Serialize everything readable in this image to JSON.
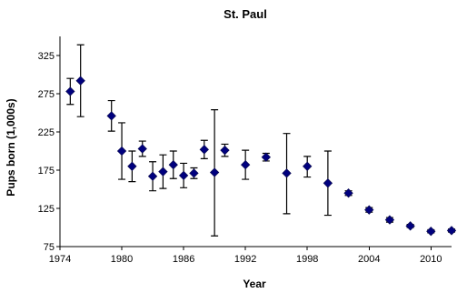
{
  "chart_data": {
    "type": "scatter",
    "title": "St. Paul",
    "xlabel": "Year",
    "ylabel": "Pups born (1,000s)",
    "xlim": [
      1974,
      2012
    ],
    "ylim": [
      75,
      350
    ],
    "xticks": [
      1974,
      1980,
      1986,
      1992,
      1998,
      2004,
      2010
    ],
    "yticks": [
      75,
      125,
      175,
      225,
      275,
      325
    ],
    "grid": false,
    "marker_color": "#00007f",
    "series": [
      {
        "points": [
          {
            "x": 1975.0,
            "y": 278,
            "lo": 261,
            "hi": 295
          },
          {
            "x": 1976.0,
            "y": 292,
            "lo": 245,
            "hi": 339
          },
          {
            "x": 1979.0,
            "y": 246,
            "lo": 226,
            "hi": 266
          },
          {
            "x": 1980.0,
            "y": 200,
            "lo": 163,
            "hi": 237
          },
          {
            "x": 1981.0,
            "y": 180,
            "lo": 160,
            "hi": 200
          },
          {
            "x": 1982.0,
            "y": 203,
            "lo": 193,
            "hi": 213
          },
          {
            "x": 1983.0,
            "y": 167,
            "lo": 148,
            "hi": 186
          },
          {
            "x": 1984.0,
            "y": 173,
            "lo": 151,
            "hi": 195
          },
          {
            "x": 1985.0,
            "y": 182,
            "lo": 164,
            "hi": 200
          },
          {
            "x": 1986.0,
            "y": 168,
            "lo": 152,
            "hi": 184
          },
          {
            "x": 1987.0,
            "y": 171,
            "lo": 164,
            "hi": 178
          },
          {
            "x": 1988.0,
            "y": 202,
            "lo": 190,
            "hi": 214
          },
          {
            "x": 1989.0,
            "y": 172,
            "lo": 89,
            "hi": 254
          },
          {
            "x": 1990.0,
            "y": 201,
            "lo": 193,
            "hi": 209
          },
          {
            "x": 1992.0,
            "y": 182,
            "lo": 163,
            "hi": 201
          },
          {
            "x": 1994.0,
            "y": 192,
            "lo": 187,
            "hi": 197
          },
          {
            "x": 1996.0,
            "y": 171,
            "lo": 118,
            "hi": 223
          },
          {
            "x": 1998.0,
            "y": 180,
            "lo": 166,
            "hi": 193
          },
          {
            "x": 2000.0,
            "y": 158,
            "lo": 116,
            "hi": 200
          },
          {
            "x": 2002.0,
            "y": 145,
            "lo": 142,
            "hi": 148
          },
          {
            "x": 2004.0,
            "y": 123,
            "lo": 120,
            "hi": 126
          },
          {
            "x": 2006.0,
            "y": 110,
            "lo": 107,
            "hi": 113
          },
          {
            "x": 2008.0,
            "y": 102,
            "lo": 100,
            "hi": 104
          },
          {
            "x": 2010.0,
            "y": 95,
            "lo": 93,
            "hi": 97
          },
          {
            "x": 2012.0,
            "y": 96,
            "lo": 94,
            "hi": 98
          }
        ]
      }
    ]
  }
}
